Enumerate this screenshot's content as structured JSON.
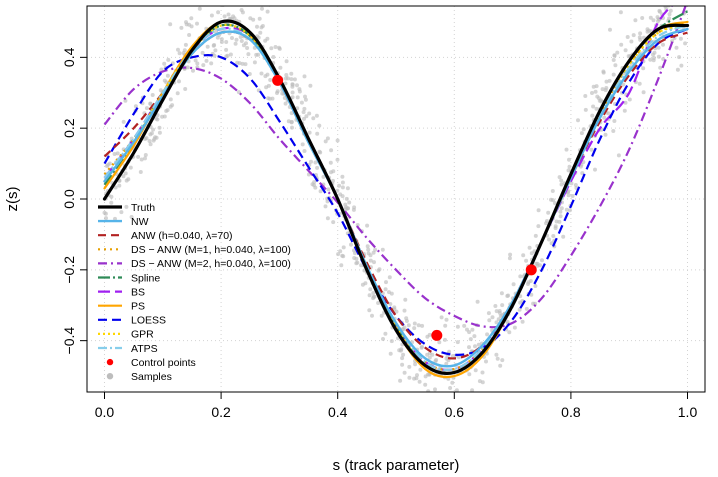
{
  "chart_data": {
    "type": "line",
    "title": "",
    "xlabel": "s (track parameter)",
    "ylabel": "z(s)",
    "xlim": [
      -0.03,
      1.03
    ],
    "ylim": [
      -0.545,
      0.545
    ],
    "x_ticks": [
      0.0,
      0.2,
      0.4,
      0.6,
      0.8,
      1.0
    ],
    "x_tick_labels": [
      "0.0",
      "0.2",
      "0.4",
      "0.6",
      "0.8",
      "1.0"
    ],
    "y_ticks": [
      -0.4,
      -0.2,
      0.0,
      0.2,
      0.4
    ],
    "y_tick_labels": [
      "−0.4",
      "−0.2",
      "0.0",
      "0.2",
      "0.4"
    ],
    "grid": true,
    "legend_position": "bottom-left",
    "series": [
      {
        "name": "Truth",
        "color": "#000000",
        "dash": "solid",
        "width": 3.2,
        "x": [
          0,
          0.05,
          0.1,
          0.15,
          0.2,
          0.25,
          0.3,
          0.35,
          0.4,
          0.45,
          0.5,
          0.55,
          0.6,
          0.65,
          0.7,
          0.75,
          0.8,
          0.85,
          0.9,
          0.95,
          1.0
        ],
        "y": [
          0,
          0.13,
          0.28,
          0.42,
          0.5,
          0.47,
          0.34,
          0.17,
          0.0,
          -0.2,
          -0.37,
          -0.47,
          -0.49,
          -0.43,
          -0.3,
          -0.12,
          0.07,
          0.25,
          0.39,
          0.48,
          0.49
        ]
      },
      {
        "name": "NW",
        "color": "#56b4e9",
        "dash": "solid",
        "width": 2.4,
        "x": [
          0,
          0.05,
          0.1,
          0.15,
          0.2,
          0.25,
          0.3,
          0.35,
          0.4,
          0.45,
          0.5,
          0.55,
          0.6,
          0.65,
          0.7,
          0.75,
          0.8,
          0.85,
          0.9,
          0.95,
          1.0
        ],
        "y": [
          0.05,
          0.16,
          0.29,
          0.41,
          0.47,
          0.45,
          0.33,
          0.16,
          0.0,
          -0.19,
          -0.35,
          -0.45,
          -0.47,
          -0.41,
          -0.29,
          -0.12,
          0.06,
          0.23,
          0.36,
          0.45,
          0.48
        ]
      },
      {
        "name": "ANW (h=0.040, λ=70)",
        "color": "#b22222",
        "dash": "8,5",
        "width": 2.2,
        "x": [
          0,
          0.05,
          0.1,
          0.15,
          0.2,
          0.25,
          0.3,
          0.35,
          0.4,
          0.45,
          0.5,
          0.55,
          0.6,
          0.65,
          0.7,
          0.75,
          0.8,
          0.85,
          0.9,
          0.95,
          1.0
        ],
        "y": [
          0.12,
          0.2,
          0.3,
          0.41,
          0.47,
          0.45,
          0.34,
          0.17,
          0.0,
          -0.18,
          -0.33,
          -0.42,
          -0.45,
          -0.41,
          -0.29,
          -0.12,
          0.06,
          0.22,
          0.35,
          0.44,
          0.47
        ]
      },
      {
        "name": "DS − ANW (M=1, h=0.040, λ=100)",
        "color": "#e69f00",
        "dash": "2,4",
        "width": 2.2,
        "x": [
          0,
          0.05,
          0.1,
          0.15,
          0.2,
          0.25,
          0.3,
          0.35,
          0.4,
          0.45,
          0.5,
          0.55,
          0.6,
          0.65,
          0.7,
          0.75,
          0.8,
          0.85,
          0.9,
          0.95,
          1.0
        ],
        "y": [
          0.07,
          0.17,
          0.3,
          0.42,
          0.49,
          0.46,
          0.34,
          0.17,
          0.0,
          -0.19,
          -0.36,
          -0.46,
          -0.48,
          -0.42,
          -0.29,
          -0.12,
          0.06,
          0.24,
          0.38,
          0.47,
          0.5
        ]
      },
      {
        "name": "DS − ANW (M=2, h=0.040, λ=100)",
        "color": "#9932cc",
        "dash": "9,4,2,4",
        "width": 2.2,
        "x": [
          0,
          0.05,
          0.1,
          0.15,
          0.2,
          0.25,
          0.3,
          0.35,
          0.4,
          0.45,
          0.5,
          0.55,
          0.6,
          0.65,
          0.7,
          0.75,
          0.8,
          0.85,
          0.9,
          0.95,
          1.0
        ],
        "y": [
          0.21,
          0.31,
          0.36,
          0.37,
          0.34,
          0.27,
          0.17,
          0.08,
          -0.01,
          -0.11,
          -0.2,
          -0.28,
          -0.33,
          -0.36,
          -0.35,
          -0.28,
          -0.16,
          -0.02,
          0.14,
          0.34,
          0.56
        ]
      },
      {
        "name": "Spline",
        "color": "#2e8b57",
        "dash": "12,3,2,3",
        "width": 2.2,
        "x": [
          0,
          0.05,
          0.1,
          0.15,
          0.2,
          0.25,
          0.3,
          0.35,
          0.4,
          0.45,
          0.5,
          0.55,
          0.6,
          0.65,
          0.7,
          0.75,
          0.8,
          0.85,
          0.9,
          0.95,
          1.0
        ],
        "y": [
          0.04,
          0.16,
          0.3,
          0.42,
          0.49,
          0.46,
          0.33,
          0.16,
          0.0,
          -0.19,
          -0.36,
          -0.47,
          -0.49,
          -0.43,
          -0.3,
          -0.12,
          0.07,
          0.25,
          0.39,
          0.48,
          0.53
        ]
      },
      {
        "name": "BS",
        "color": "#a020f0",
        "dash": "12,5",
        "width": 2.2,
        "x": [
          0,
          0.05,
          0.1,
          0.15,
          0.2,
          0.25,
          0.3,
          0.35,
          0.4,
          0.45,
          0.5,
          0.55,
          0.6,
          0.65,
          0.7,
          0.75,
          0.8,
          0.85,
          0.9,
          0.95,
          1.0
        ],
        "y": [
          0.06,
          0.17,
          0.3,
          0.42,
          0.48,
          0.46,
          0.33,
          0.16,
          0.0,
          -0.19,
          -0.36,
          -0.46,
          -0.48,
          -0.42,
          -0.29,
          -0.12,
          0.05,
          0.2,
          0.3,
          0.5,
          0.58
        ]
      },
      {
        "name": "PS",
        "color": "#ffa500",
        "dash": "solid",
        "width": 2.2,
        "x": [
          0,
          0.05,
          0.1,
          0.15,
          0.2,
          0.25,
          0.3,
          0.35,
          0.4,
          0.45,
          0.5,
          0.55,
          0.6,
          0.65,
          0.7,
          0.75,
          0.8,
          0.85,
          0.9,
          0.95,
          1.0
        ],
        "y": [
          0.03,
          0.15,
          0.3,
          0.43,
          0.5,
          0.47,
          0.34,
          0.17,
          0.0,
          -0.2,
          -0.37,
          -0.48,
          -0.5,
          -0.44,
          -0.3,
          -0.12,
          0.07,
          0.25,
          0.39,
          0.48,
          0.5
        ]
      },
      {
        "name": "LOESS",
        "color": "#0000ee",
        "dash": "9,5",
        "width": 2.2,
        "x": [
          0,
          0.05,
          0.1,
          0.15,
          0.2,
          0.25,
          0.3,
          0.35,
          0.4,
          0.45,
          0.5,
          0.55,
          0.6,
          0.65,
          0.7,
          0.75,
          0.8,
          0.85,
          0.9,
          0.95,
          1.0
        ],
        "y": [
          0.1,
          0.24,
          0.36,
          0.4,
          0.4,
          0.34,
          0.22,
          0.09,
          -0.04,
          -0.2,
          -0.33,
          -0.41,
          -0.44,
          -0.42,
          -0.34,
          -0.2,
          -0.02,
          0.17,
          0.33,
          0.44,
          0.48
        ]
      },
      {
        "name": "GPR",
        "color": "#ffd700",
        "dash": "2,3",
        "width": 2.2,
        "x": [
          0,
          0.05,
          0.1,
          0.15,
          0.2,
          0.25,
          0.3,
          0.35,
          0.4,
          0.45,
          0.5,
          0.55,
          0.6,
          0.65,
          0.7,
          0.75,
          0.8,
          0.85,
          0.9,
          0.95,
          1.0
        ],
        "y": [
          0.05,
          0.16,
          0.3,
          0.42,
          0.49,
          0.46,
          0.34,
          0.17,
          0.0,
          -0.19,
          -0.36,
          -0.47,
          -0.49,
          -0.43,
          -0.3,
          -0.12,
          0.07,
          0.25,
          0.38,
          0.47,
          0.49
        ]
      },
      {
        "name": "ATPS",
        "color": "#87ceeb",
        "dash": "9,3,2,3",
        "width": 2.2,
        "x": [
          0,
          0.05,
          0.1,
          0.15,
          0.2,
          0.25,
          0.3,
          0.35,
          0.4,
          0.45,
          0.5,
          0.55,
          0.6,
          0.65,
          0.7,
          0.75,
          0.8,
          0.85,
          0.9,
          0.95,
          1.0
        ],
        "y": [
          0.06,
          0.17,
          0.3,
          0.42,
          0.48,
          0.45,
          0.33,
          0.16,
          0.0,
          -0.19,
          -0.35,
          -0.46,
          -0.48,
          -0.42,
          -0.29,
          -0.12,
          0.06,
          0.24,
          0.37,
          0.46,
          0.49
        ]
      }
    ],
    "control_points": {
      "name": "Control points",
      "color": "#ff0000",
      "x": [
        0.297,
        0.57,
        0.732
      ],
      "y": [
        0.335,
        -0.385,
        -0.2
      ]
    },
    "samples": {
      "name": "Samples",
      "color": "#bdbdbd",
      "count": 900
    }
  }
}
